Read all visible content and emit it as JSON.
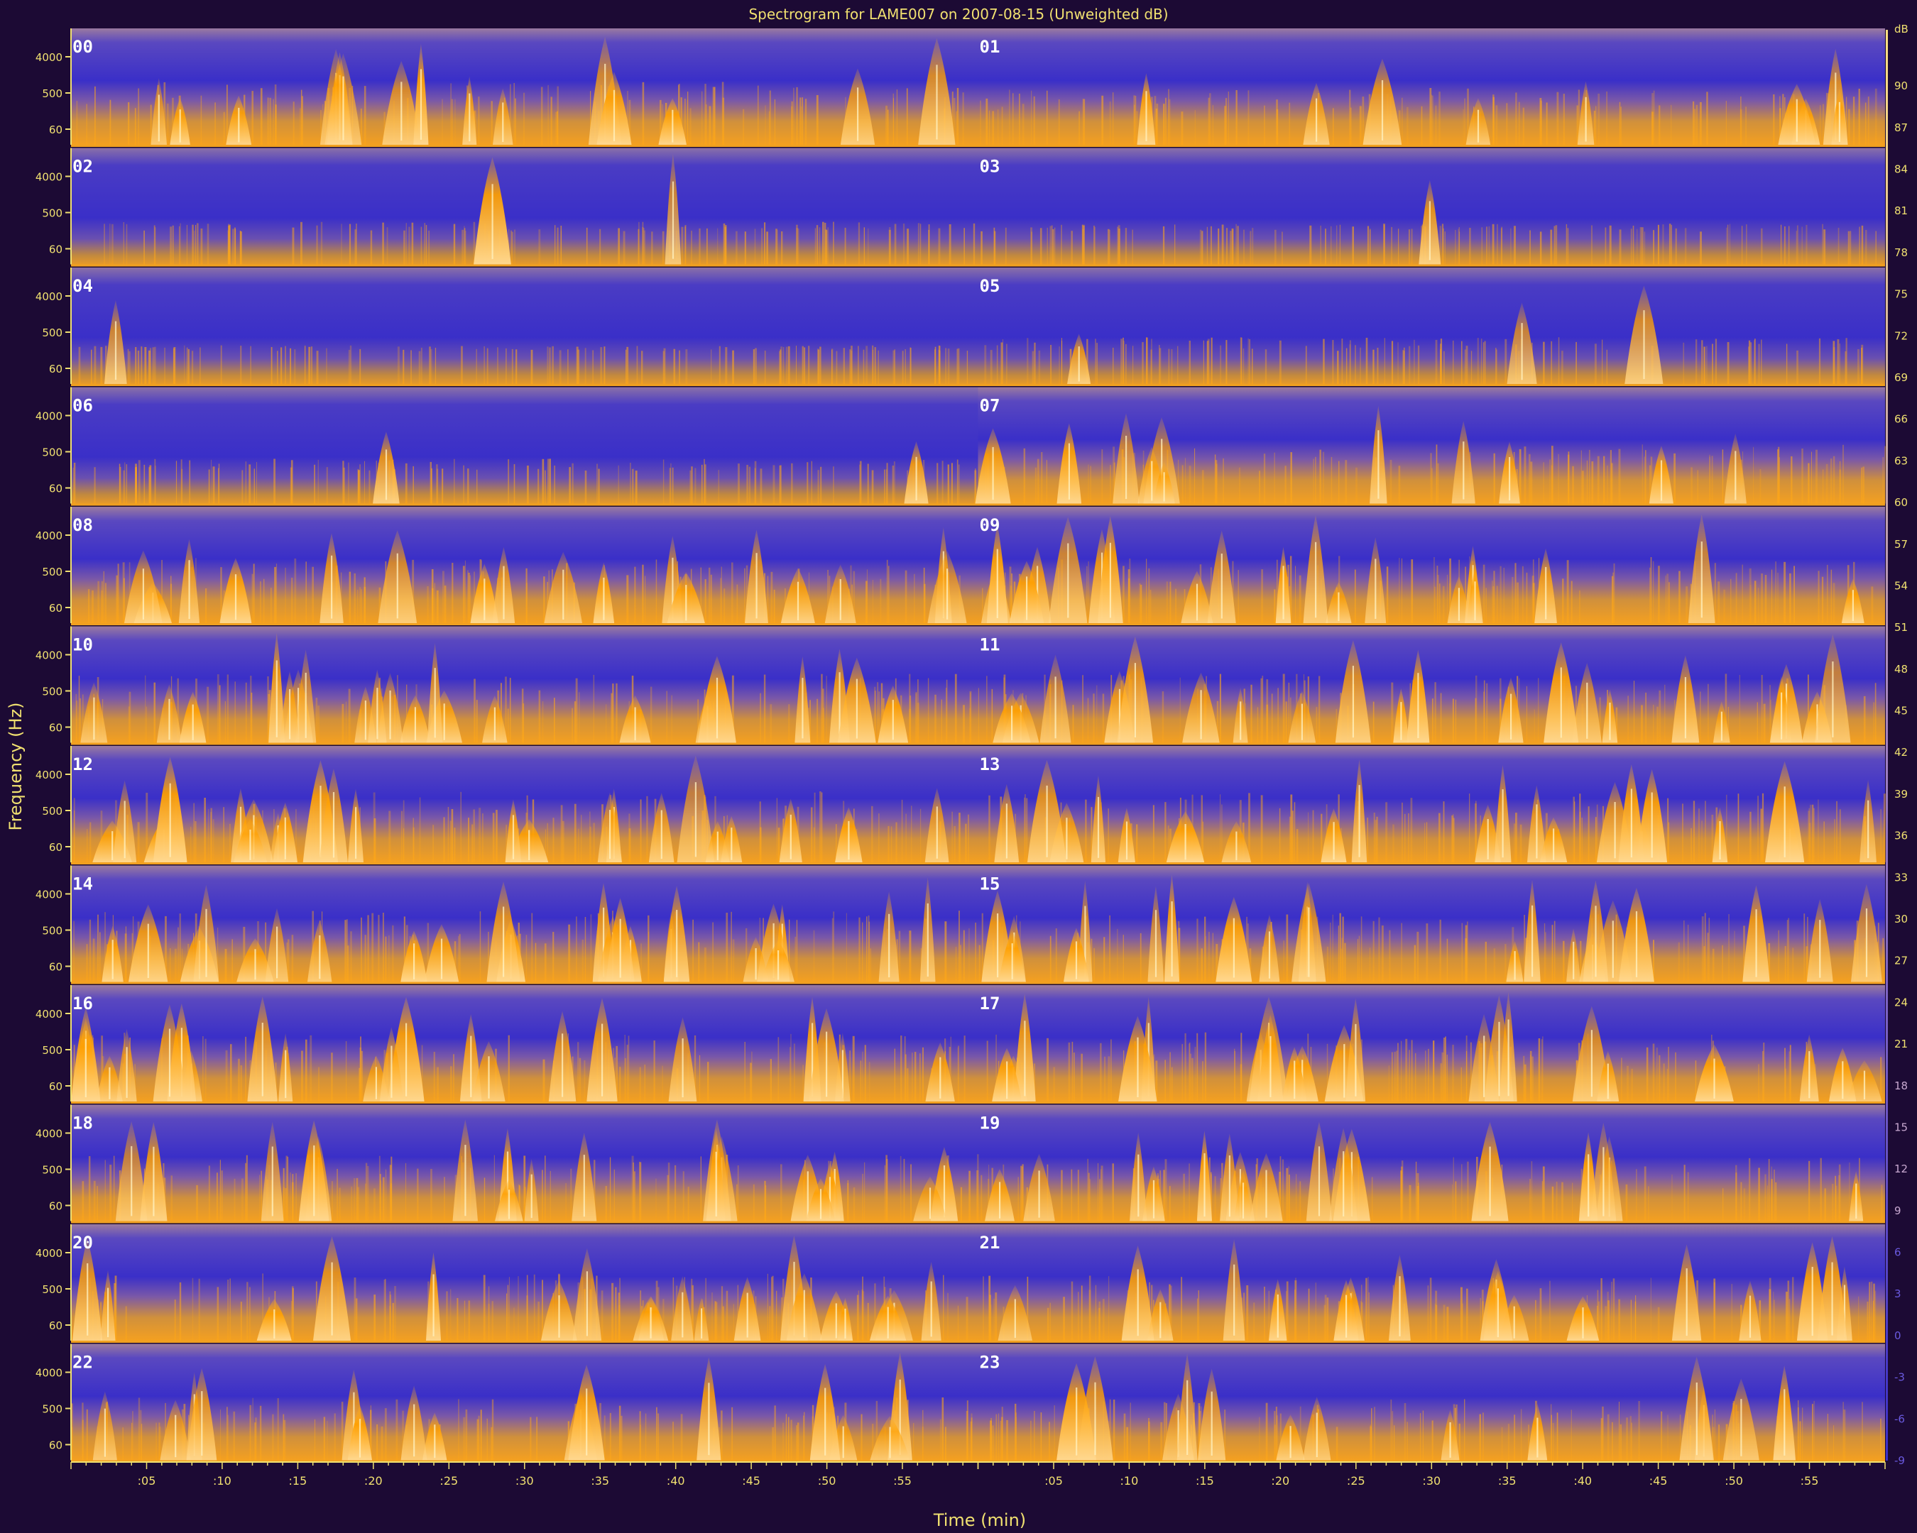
{
  "chart_data": {
    "type": "heatmap",
    "title": "Spectrogram for LAME007 on 2007-08-15 (Unweighted dB)",
    "xlabel": "Time (min)",
    "ylabel": "Frequency (Hz)",
    "y_tick_labels": [
      "4000",
      "500",
      "60"
    ],
    "x_tick_labels": [
      ":05",
      ":10",
      ":15",
      ":20",
      ":25",
      ":30",
      ":35",
      ":40",
      ":45",
      ":50",
      ":55"
    ],
    "hour_labels": [
      "00",
      "01",
      "02",
      "03",
      "04",
      "05",
      "06",
      "07",
      "08",
      "09",
      "10",
      "11",
      "12",
      "13",
      "14",
      "15",
      "16",
      "17",
      "18",
      "19",
      "20",
      "21",
      "22",
      "23"
    ],
    "colorbar_ticks": [
      90,
      87,
      84,
      81,
      78,
      75,
      72,
      69,
      66,
      63,
      60,
      57,
      54,
      51,
      48,
      45,
      42,
      39,
      36,
      33,
      30,
      27,
      24,
      21,
      18,
      15,
      12,
      9,
      6,
      3,
      0,
      -3,
      -6,
      -9
    ],
    "colorbar_unit": "dB",
    "colors": {
      "low": "#3a2fc8",
      "mid": "#c98a3a",
      "high": "#ffa000",
      "peak": "#fff2c0",
      "text": "#f0e070",
      "background": "#1c0a34"
    },
    "activity": [
      0.75,
      0.6,
      0.25,
      0.2,
      0.15,
      0.35,
      0.3,
      0.65,
      0.8,
      0.85,
      0.9,
      0.9,
      0.95,
      0.9,
      0.95,
      0.9,
      0.9,
      0.9,
      0.85,
      0.8,
      0.85,
      0.8,
      0.75,
      0.7
    ]
  }
}
